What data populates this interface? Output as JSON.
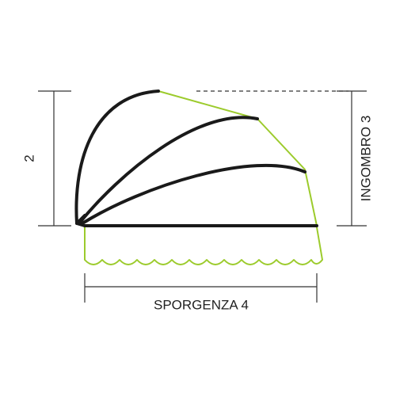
{
  "labels": {
    "height": "2",
    "ingombro": "INGOMBRO 3",
    "sporgenza": "SPORGENZA 4"
  }
}
